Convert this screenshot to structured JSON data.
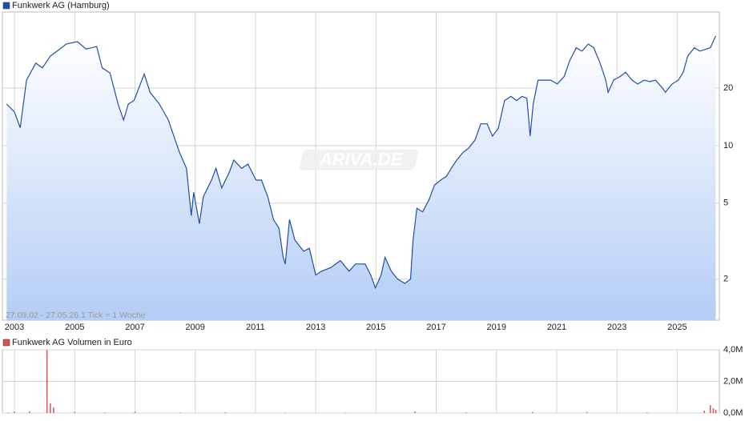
{
  "chart_data": [
    {
      "type": "line",
      "scale": "log",
      "grid": true,
      "watermark": "ARIVA.DE",
      "annotation": "27.09.02 - 27.05.26   1 Tick = 1 Woche",
      "xlim": [
        2002.6,
        2026.4
      ],
      "ylim": [
        1.22,
        50
      ],
      "xticks": [
        2003,
        2005,
        2007,
        2009,
        2011,
        2013,
        2015,
        2017,
        2019,
        2021,
        2023,
        2025
      ],
      "yticks": [
        2,
        5,
        10,
        20
      ],
      "x": [
        2002.74,
        2003.0,
        2003.19,
        2003.4,
        2003.71,
        2003.93,
        2004.19,
        2004.46,
        2004.72,
        2005.09,
        2005.38,
        2005.73,
        2005.91,
        2006.17,
        2006.44,
        2006.62,
        2006.78,
        2006.97,
        2007.31,
        2007.5,
        2007.81,
        2008.11,
        2008.29,
        2008.48,
        2008.71,
        2008.87,
        2008.95,
        2009.14,
        2009.27,
        2009.54,
        2009.69,
        2009.88,
        2010.14,
        2010.28,
        2010.54,
        2010.75,
        2011.02,
        2011.2,
        2011.41,
        2011.6,
        2011.78,
        2011.92,
        2011.99,
        2012.13,
        2012.31,
        2012.6,
        2012.79,
        2013.0,
        2013.19,
        2013.5,
        2013.82,
        2014.11,
        2014.32,
        2014.64,
        2014.83,
        2014.98,
        2015.17,
        2015.3,
        2015.51,
        2015.72,
        2015.96,
        2016.15,
        2016.23,
        2016.36,
        2016.55,
        2016.76,
        2016.94,
        2017.15,
        2017.34,
        2017.5,
        2017.68,
        2017.89,
        2018.08,
        2018.29,
        2018.48,
        2018.69,
        2018.87,
        2019.06,
        2019.27,
        2019.48,
        2019.67,
        2019.85,
        2020.01,
        2020.12,
        2020.22,
        2020.38,
        2020.59,
        2020.8,
        2021.02,
        2021.25,
        2021.44,
        2021.65,
        2021.84,
        2022.05,
        2022.23,
        2022.44,
        2022.63,
        2022.71,
        2022.89,
        2023.11,
        2023.29,
        2023.5,
        2023.69,
        2023.9,
        2024.09,
        2024.28,
        2024.51,
        2024.61,
        2024.83,
        2025.04,
        2025.2,
        2025.35,
        2025.57,
        2025.75,
        2026.1,
        2026.28
      ],
      "series": [
        {
          "name": "Funkwerk AG (Hamburg)",
          "color": "#1f4fa8",
          "values": [
            16.5,
            15,
            12.4,
            22,
            27,
            25.5,
            29.4,
            31.6,
            34,
            35,
            32,
            33,
            25.5,
            24,
            16.5,
            13.6,
            16.5,
            17.2,
            23.7,
            19,
            16.5,
            13.6,
            11.2,
            9.2,
            7.6,
            4.3,
            5.7,
            3.9,
            5.4,
            6.6,
            7.6,
            6,
            7.3,
            8.4,
            7.6,
            8,
            6.6,
            6.6,
            5.4,
            4.1,
            3.7,
            2.6,
            2.4,
            4.1,
            3.2,
            2.8,
            2.9,
            2.1,
            2.2,
            2.3,
            2.5,
            2.2,
            2.4,
            2.4,
            2.1,
            1.8,
            2.1,
            2.6,
            2.2,
            2.0,
            1.9,
            2.0,
            3.2,
            4.7,
            4.5,
            5.2,
            6.2,
            6.6,
            6.9,
            7.6,
            8.4,
            9.2,
            9.7,
            10.7,
            13,
            13,
            11.2,
            12.3,
            17.2,
            18.1,
            17.2,
            18.1,
            17.7,
            11.2,
            16.5,
            22,
            22,
            22,
            21,
            23,
            28,
            32.5,
            31.2,
            34,
            32.5,
            27,
            22,
            19,
            22,
            23,
            24.2,
            22,
            21,
            22,
            21.6,
            22,
            20,
            19,
            21,
            22,
            24.2,
            29.4,
            32.5,
            31.2,
            32.5,
            37.5
          ]
        }
      ]
    },
    {
      "type": "bar",
      "grid": true,
      "xlim": [
        2002.6,
        2026.4
      ],
      "ylim": [
        0,
        4000000
      ],
      "yticks": [
        {
          "value": 0,
          "label": "0,0M"
        },
        {
          "value": 2000000,
          "label": "2,0M"
        },
        {
          "value": 4000000,
          "label": "4,0M"
        }
      ],
      "x": [
        2002.8,
        2003.0,
        2003.5,
        2004.08,
        2004.19,
        2004.3,
        2005.0,
        2006.0,
        2007.0,
        2008.5,
        2010.0,
        2012.0,
        2014.0,
        2016.3,
        2018.0,
        2020.2,
        2022.0,
        2024.0,
        2025.9,
        2026.1,
        2026.2,
        2026.28
      ],
      "series": [
        {
          "name": "Funkwerk AG Volumen in Euro",
          "color": "#d9534f",
          "values": [
            30000,
            80000,
            100000,
            4000000,
            600000,
            350000,
            60000,
            40000,
            70000,
            30000,
            40000,
            20000,
            20000,
            90000,
            40000,
            60000,
            70000,
            40000,
            150000,
            500000,
            300000,
            200000
          ]
        }
      ]
    }
  ]
}
